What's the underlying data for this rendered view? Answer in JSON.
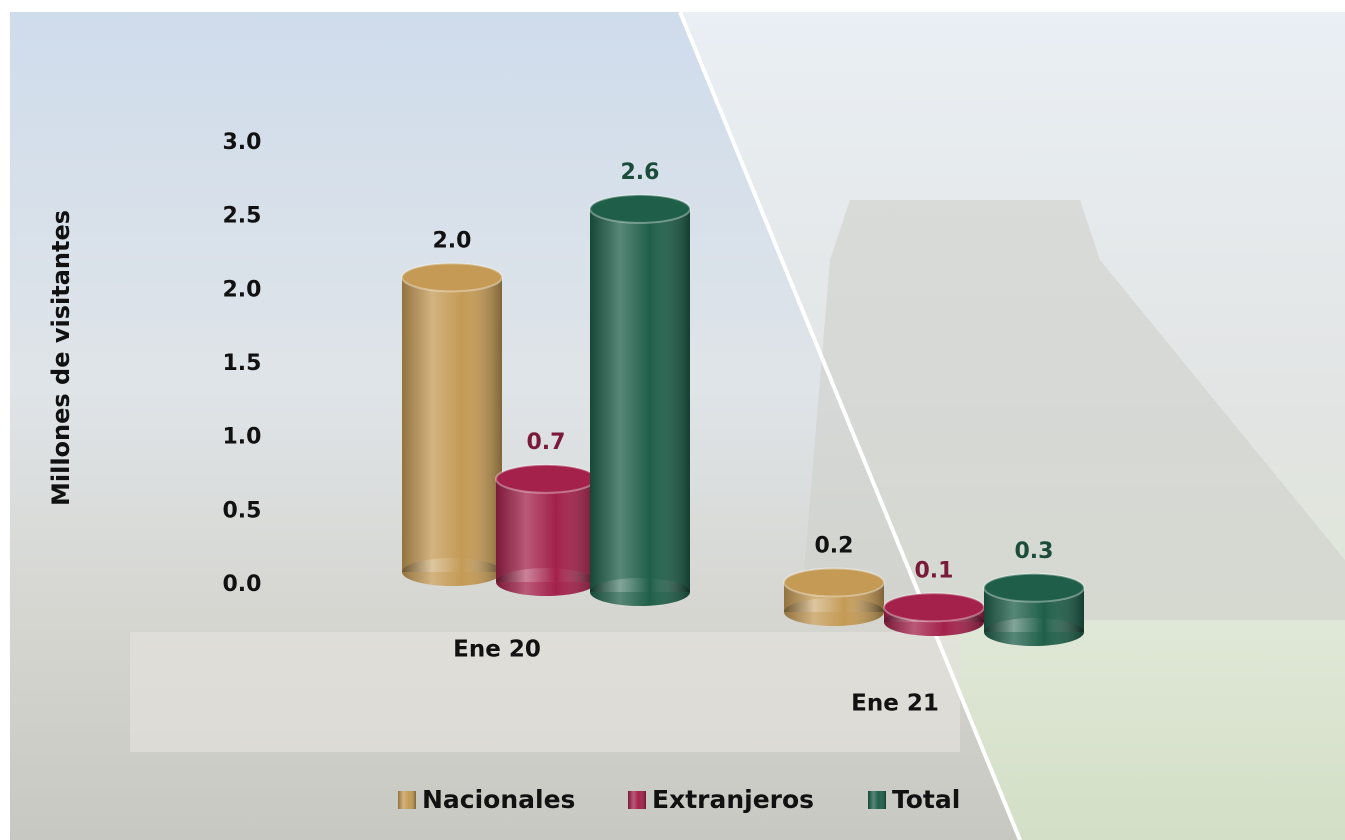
{
  "chart_data": {
    "type": "bar",
    "ylabel": "Millones de visitantes",
    "categories": [
      "Ene 20",
      "Ene 21"
    ],
    "series": [
      {
        "name": "Nacionales",
        "color": "#c49a55",
        "label_color": "#111111",
        "values": [
          2.0,
          0.2
        ],
        "value_labels": [
          "2.0",
          "0.2"
        ]
      },
      {
        "name": "Extranjeros",
        "color": "#a3214b",
        "label_color": "#7a1a3a",
        "values": [
          0.7,
          0.1
        ],
        "value_labels": [
          "0.7",
          "0.1"
        ]
      },
      {
        "name": "Total",
        "color": "#1f5f49",
        "label_color": "#1b4c3b",
        "values": [
          2.6,
          0.3
        ],
        "value_labels": [
          "2.6",
          "0.3"
        ]
      }
    ],
    "ylim": [
      0,
      3
    ],
    "yticks": [
      {
        "value": 0,
        "label": "0.0"
      },
      {
        "value": 0.5,
        "label": "0.5"
      },
      {
        "value": 1,
        "label": "1.0"
      },
      {
        "value": 1.5,
        "label": "1.5"
      },
      {
        "value": 2,
        "label": "2.0"
      },
      {
        "value": 2.5,
        "label": "2.5"
      },
      {
        "value": 3,
        "label": "3.0"
      }
    ],
    "legend": "bottom"
  }
}
